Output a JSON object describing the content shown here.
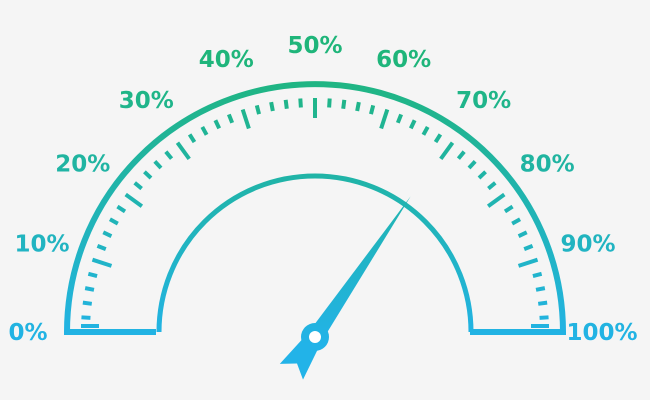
{
  "gauge": {
    "scale_labels": [
      "0%",
      "10%",
      "20%",
      "30%",
      "40%",
      "50%",
      "60%",
      "70%",
      "80%",
      "90%",
      "100%"
    ],
    "value_percent": 69,
    "colors": {
      "top": "#1fb57a",
      "bottom": "#22b3e8",
      "background": "#f5f5f5"
    }
  }
}
